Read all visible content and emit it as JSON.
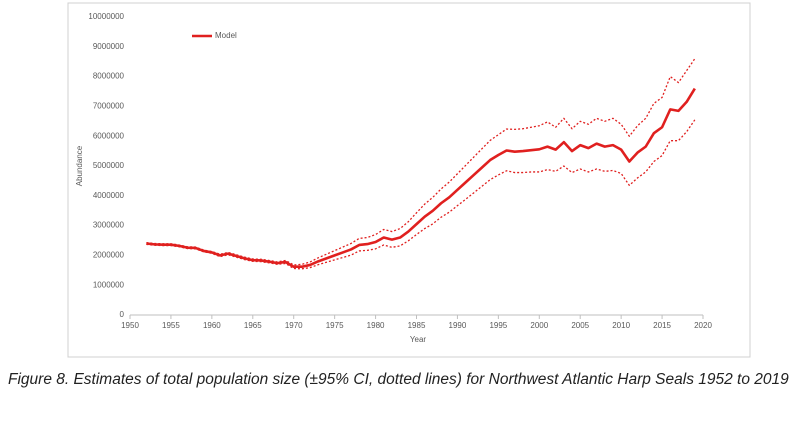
{
  "chart_data": {
    "type": "line",
    "xlabel": "Year",
    "ylabel": "Abundance",
    "caption": "Figure 8. Estimates of total population size (±95% CI, dotted lines) for Northwest Atlantic Harp Seals 1952 to 2019",
    "x": [
      1952,
      1953,
      1954,
      1955,
      1956,
      1957,
      1958,
      1959,
      1960,
      1961,
      1962,
      1963,
      1964,
      1965,
      1966,
      1967,
      1968,
      1969,
      1970,
      1971,
      1972,
      1973,
      1974,
      1975,
      1976,
      1977,
      1978,
      1979,
      1980,
      1981,
      1982,
      1983,
      1984,
      1985,
      1986,
      1987,
      1988,
      1989,
      1990,
      1991,
      1992,
      1993,
      1994,
      1995,
      1996,
      1997,
      1998,
      1999,
      2000,
      2001,
      2002,
      2003,
      2004,
      2005,
      2006,
      2007,
      2008,
      2009,
      2010,
      2011,
      2012,
      2013,
      2014,
      2015,
      2016,
      2017,
      2018,
      2019
    ],
    "xlim": [
      1950,
      2020
    ],
    "xticks": [
      1950,
      1955,
      1960,
      1965,
      1970,
      1975,
      1980,
      1985,
      1990,
      1995,
      2000,
      2005,
      2010,
      2015,
      2020
    ],
    "ylim": [
      0,
      10000000
    ],
    "yticks": [
      0,
      1000000,
      2000000,
      3000000,
      4000000,
      5000000,
      6000000,
      7000000,
      8000000,
      9000000,
      10000000
    ],
    "legend": "top-left",
    "series": [
      {
        "name": "Model",
        "color": "#e0201f",
        "line_style": "solid",
        "values": [
          2400000,
          2370000,
          2360000,
          2360000,
          2320000,
          2260000,
          2250000,
          2150000,
          2100000,
          2000000,
          2060000,
          1980000,
          1900000,
          1840000,
          1830000,
          1790000,
          1740000,
          1780000,
          1620000,
          1620000,
          1680000,
          1800000,
          1900000,
          2000000,
          2100000,
          2200000,
          2350000,
          2380000,
          2450000,
          2600000,
          2530000,
          2600000,
          2800000,
          3050000,
          3300000,
          3500000,
          3750000,
          3950000,
          4200000,
          4450000,
          4700000,
          4950000,
          5200000,
          5370000,
          5520000,
          5480000,
          5500000,
          5530000,
          5560000,
          5650000,
          5550000,
          5800000,
          5500000,
          5700000,
          5600000,
          5750000,
          5650000,
          5700000,
          5550000,
          5150000,
          5450000,
          5650000,
          6100000,
          6300000,
          6900000,
          6850000,
          7150000,
          7600000
        ]
      },
      {
        "color": "#e0201f",
        "line_style": "dotted",
        "values": [
          2430000,
          2400000,
          2390000,
          2390000,
          2350000,
          2290000,
          2280000,
          2180000,
          2130000,
          2040000,
          2100000,
          2020000,
          1940000,
          1880000,
          1870000,
          1830000,
          1780000,
          1830000,
          1680000,
          1700000,
          1780000,
          1920000,
          2040000,
          2160000,
          2280000,
          2400000,
          2570000,
          2600000,
          2700000,
          2870000,
          2800000,
          2900000,
          3130000,
          3430000,
          3720000,
          3950000,
          4230000,
          4460000,
          4740000,
          5020000,
          5300000,
          5580000,
          5860000,
          6050000,
          6240000,
          6230000,
          6250000,
          6300000,
          6350000,
          6480000,
          6300000,
          6600000,
          6250000,
          6500000,
          6400000,
          6600000,
          6500000,
          6600000,
          6400000,
          6000000,
          6350000,
          6600000,
          7100000,
          7300000,
          8000000,
          7800000,
          8200000,
          8600000
        ]
      },
      {
        "color": "#e0201f",
        "line_style": "dotted",
        "values": [
          2370000,
          2340000,
          2330000,
          2330000,
          2290000,
          2230000,
          2220000,
          2120000,
          2070000,
          1960000,
          2020000,
          1940000,
          1860000,
          1800000,
          1790000,
          1750000,
          1700000,
          1730000,
          1560000,
          1550000,
          1590000,
          1690000,
          1770000,
          1850000,
          1930000,
          2010000,
          2150000,
          2170000,
          2220000,
          2350000,
          2270000,
          2320000,
          2490000,
          2700000,
          2900000,
          3060000,
          3280000,
          3450000,
          3670000,
          3880000,
          4100000,
          4320000,
          4540000,
          4700000,
          4840000,
          4780000,
          4780000,
          4800000,
          4800000,
          4880000,
          4820000,
          5000000,
          4780000,
          4900000,
          4800000,
          4900000,
          4820000,
          4850000,
          4750000,
          4350000,
          4600000,
          4800000,
          5150000,
          5350000,
          5850000,
          5850000,
          6150000,
          6550000
        ]
      }
    ]
  }
}
